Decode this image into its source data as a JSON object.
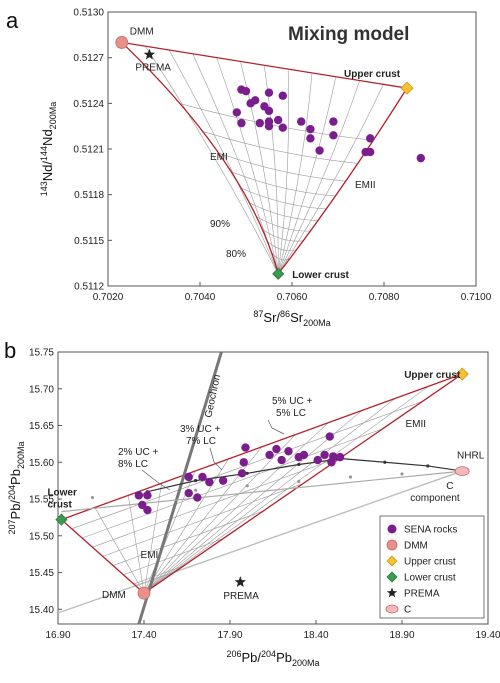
{
  "chart_data": [
    {
      "panel": "a",
      "type": "scatter",
      "title": "Mixing model",
      "xlabel": {
        "pre": "87",
        "base": "Sr/",
        "pre2": "86",
        "base2": "Sr",
        "sub": "200Ma"
      },
      "ylabel": {
        "pre": "143",
        "base": "Nd/",
        "pre2": "144",
        "base2": "Nd",
        "sub": "200Ma"
      },
      "xlim": [
        0.702,
        0.71
      ],
      "ylim": [
        0.5112,
        0.513
      ],
      "xticks": [
        "0.7020",
        "0.7040",
        "0.7060",
        "0.7080",
        "0.7100"
      ],
      "yticks": [
        "0.5112",
        "0.5115",
        "0.5118",
        "0.5121",
        "0.5124",
        "0.5127",
        "0.5130"
      ],
      "endmembers": {
        "DMM": {
          "label": "DMM",
          "x": 0.7023,
          "y": 0.5128
        },
        "UC": {
          "label": "Upper crust",
          "x": 0.7085,
          "y": 0.5125
        },
        "LC": {
          "label": "Lower crust",
          "x": 0.7057,
          "y": 0.51128
        },
        "PREMA": {
          "label": "PREMA",
          "x": 0.7029,
          "y": 0.51272
        }
      },
      "annotations": [
        "EMI",
        "EMII",
        "90%",
        "80%"
      ],
      "sena": [
        [
          0.7049,
          0.51249
        ],
        [
          0.705,
          0.51248
        ],
        [
          0.7055,
          0.51247
        ],
        [
          0.7058,
          0.51245
        ],
        [
          0.7052,
          0.51242
        ],
        [
          0.7051,
          0.5124
        ],
        [
          0.7054,
          0.51238
        ],
        [
          0.7055,
          0.51235
        ],
        [
          0.7048,
          0.51234
        ],
        [
          0.7049,
          0.51227
        ],
        [
          0.7053,
          0.51227
        ],
        [
          0.7055,
          0.51228
        ],
        [
          0.7057,
          0.51229
        ],
        [
          0.7055,
          0.51225
        ],
        [
          0.7058,
          0.51224
        ],
        [
          0.7064,
          0.51223
        ],
        [
          0.7062,
          0.51228
        ],
        [
          0.7064,
          0.51217
        ],
        [
          0.7069,
          0.51228
        ],
        [
          0.7069,
          0.51219
        ],
        [
          0.7066,
          0.51209
        ],
        [
          0.7077,
          0.51217
        ],
        [
          0.7076,
          0.51208
        ],
        [
          0.7077,
          0.51208
        ],
        [
          0.7088,
          0.51204
        ]
      ]
    },
    {
      "panel": "b",
      "type": "scatter",
      "xlabel": {
        "pre": "206",
        "base": "Pb/",
        "pre2": "204",
        "base2": "Pb",
        "sub": "200Ma"
      },
      "ylabel": {
        "pre": "207",
        "base": "Pb/",
        "pre2": "204",
        "base2": "Pb",
        "sub": "200Ma"
      },
      "xlim": [
        16.9,
        19.4
      ],
      "ylim": [
        15.38,
        15.75
      ],
      "xticks": [
        "16.90",
        "17.40",
        "17.90",
        "18.40",
        "18.90",
        "19.40"
      ],
      "yticks": [
        "15.40",
        "15.45",
        "15.50",
        "15.55",
        "15.60",
        "15.65",
        "15.70",
        "15.75"
      ],
      "endmembers": {
        "DMM": {
          "label": "DMM",
          "x": 17.4,
          "y": 15.422
        },
        "UC": {
          "label": "Upper crust",
          "x": 19.25,
          "y": 15.72
        },
        "LC": {
          "label": "Lower crust",
          "x": 16.92,
          "y": 15.522
        },
        "PREMA": {
          "label": "PREMA",
          "x": 17.96,
          "y": 15.437
        },
        "C": {
          "label": "C component",
          "x": 19.25,
          "y": 15.588
        }
      },
      "annotations": [
        "Geochron",
        "NHRL",
        "EMII",
        "EMI",
        "2% UC +",
        "8% LC",
        "3% UC +",
        "7% LC",
        "5% UC +",
        "5% LC"
      ],
      "sena": [
        [
          17.37,
          15.555
        ],
        [
          17.42,
          15.555
        ],
        [
          17.39,
          15.542
        ],
        [
          17.42,
          15.535
        ],
        [
          17.66,
          15.58
        ],
        [
          17.74,
          15.58
        ],
        [
          17.66,
          15.558
        ],
        [
          17.71,
          15.552
        ],
        [
          17.78,
          15.573
        ],
        [
          17.86,
          15.575
        ],
        [
          17.99,
          15.62
        ],
        [
          17.98,
          15.6
        ],
        [
          17.97,
          15.585
        ],
        [
          18.13,
          15.61
        ],
        [
          18.17,
          15.618
        ],
        [
          18.2,
          15.603
        ],
        [
          18.24,
          15.615
        ],
        [
          18.3,
          15.607
        ],
        [
          18.33,
          15.61
        ],
        [
          18.41,
          15.603
        ],
        [
          18.45,
          15.61
        ],
        [
          18.5,
          15.608
        ],
        [
          18.48,
          15.635
        ],
        [
          18.49,
          15.6
        ],
        [
          18.54,
          15.607
        ]
      ],
      "legend": {
        "position": "bottom-right",
        "entries": [
          "SENA rocks",
          "DMM",
          "Upper crust",
          "Lower crust",
          "PREMA",
          "C"
        ]
      }
    }
  ],
  "colors": {
    "sena": "#7a1e8e",
    "dmm": "#e8908a",
    "upper_crust": "#f7c230",
    "lower_crust": "#3a9c4e",
    "prema": "#222222",
    "c": "#f5b8b8",
    "mix_line": "#b51f2b",
    "grid": "#9a9a9a",
    "upper_label": "#f2a12c",
    "lower_label": "#2b8a3e"
  }
}
